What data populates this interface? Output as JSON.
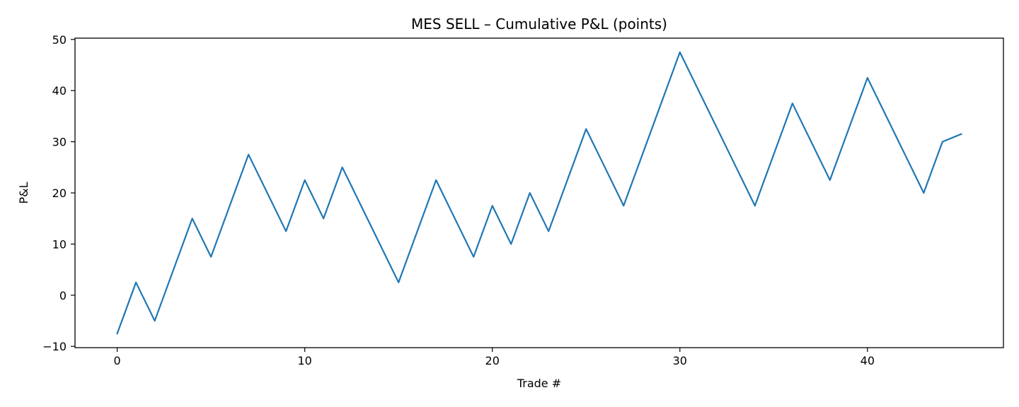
{
  "chart_data": {
    "type": "line",
    "title": "MES SELL – Cumulative P&L (points)",
    "xlabel": "Trade #",
    "ylabel": "P&L",
    "xlim": [
      -2.25,
      47.25
    ],
    "ylim": [
      -10.25,
      50.25
    ],
    "xticks": [
      0,
      10,
      20,
      30,
      40
    ],
    "yticks": [
      -10,
      0,
      10,
      20,
      30,
      40,
      50
    ],
    "grid": false,
    "line_color": "#1f77b4",
    "series": [
      {
        "x": [
          0,
          1,
          2,
          3,
          4,
          5,
          6,
          7,
          8,
          9,
          10,
          11,
          12,
          13,
          14,
          15,
          16,
          17,
          18,
          19,
          20,
          21,
          22,
          23,
          24,
          25,
          26,
          27,
          28,
          29,
          30,
          31,
          32,
          33,
          34,
          35,
          36,
          37,
          38,
          39,
          40,
          41,
          42,
          43,
          44,
          45
        ],
        "values": [
          -7.5,
          2.5,
          -5,
          5,
          15,
          7.5,
          17.5,
          27.5,
          20,
          12.5,
          22.5,
          15,
          25,
          17.5,
          10,
          2.5,
          12.5,
          22.5,
          15,
          7.5,
          17.5,
          10,
          20,
          12.5,
          22.5,
          32.5,
          25,
          17.5,
          27.5,
          37.5,
          47.5,
          40,
          32.5,
          25,
          17.5,
          27.5,
          37.5,
          30,
          22.5,
          32.5,
          42.5,
          35,
          27.5,
          20,
          30,
          31.5
        ]
      }
    ]
  }
}
